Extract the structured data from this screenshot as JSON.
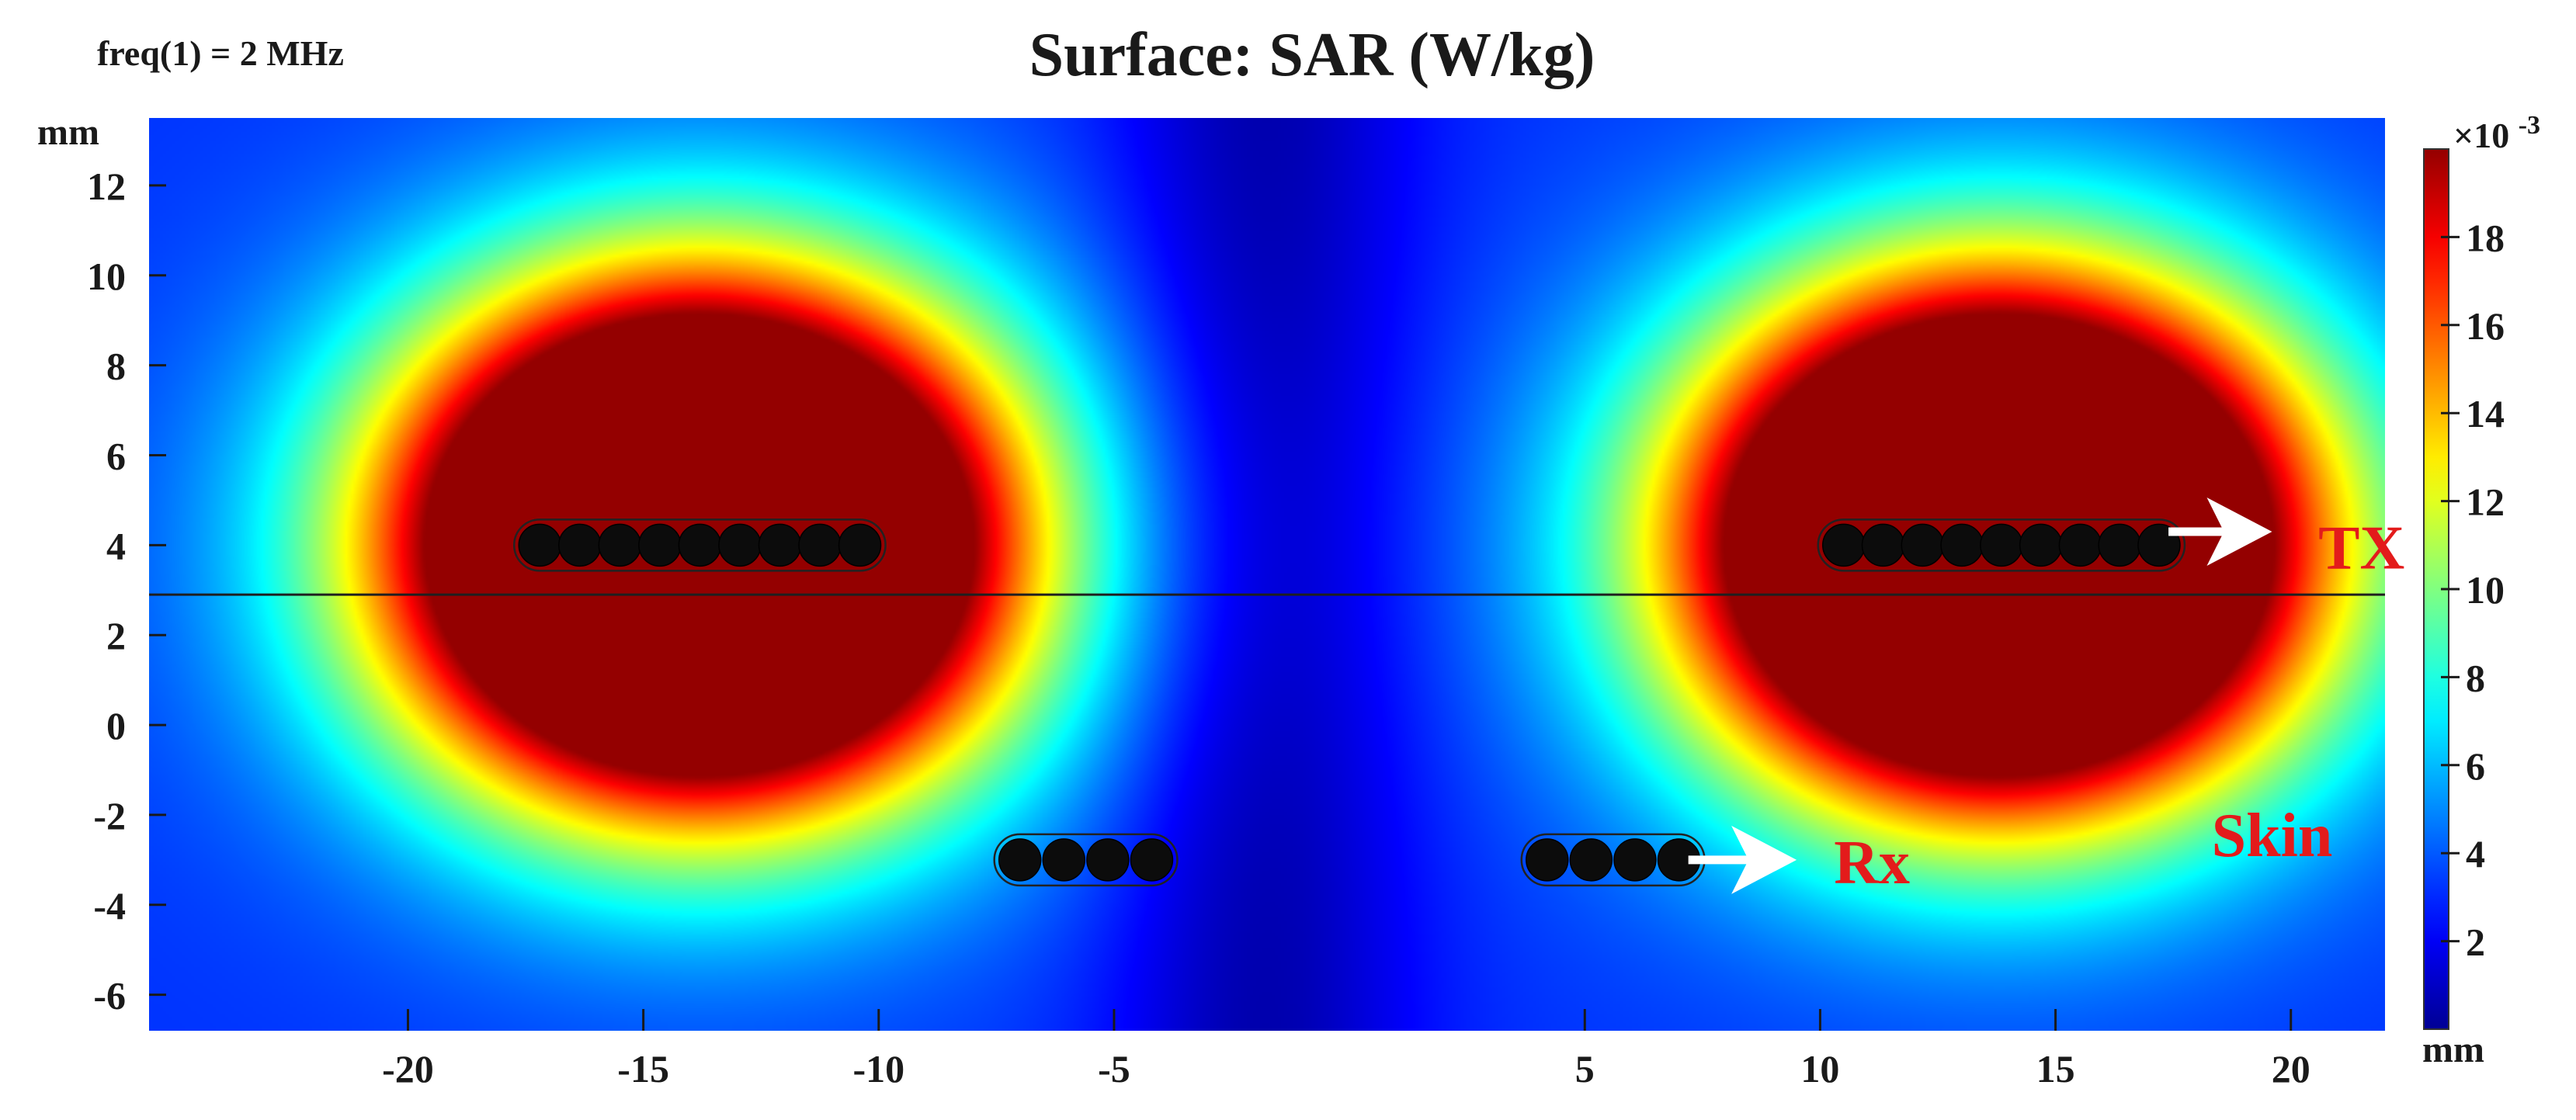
{
  "header": {
    "freq_label": "freq(1) = 2 MHz",
    "title": "Surface: SAR (W/kg)"
  },
  "chart_data": {
    "type": "heatmap",
    "title": "Surface: SAR (W/kg)",
    "parameter_label": "freq(1) = 2 MHz",
    "xlabel": "mm",
    "ylabel": "mm",
    "xlim": [
      -25.5,
      22
    ],
    "ylim": [
      -6.8,
      13.5
    ],
    "x_ticks": [
      {
        "value": -20,
        "label": "-20"
      },
      {
        "value": -15,
        "label": "-15"
      },
      {
        "value": -10,
        "label": "-10"
      },
      {
        "value": -5,
        "label": "-5"
      },
      {
        "value": 5,
        "label": "5"
      },
      {
        "value": 10,
        "label": "10"
      },
      {
        "value": 15,
        "label": "15"
      },
      {
        "value": 20,
        "label": "20"
      }
    ],
    "y_ticks": [
      {
        "value": 12,
        "label": "12"
      },
      {
        "value": 10,
        "label": "10"
      },
      {
        "value": 8,
        "label": "8"
      },
      {
        "value": 6,
        "label": "6"
      },
      {
        "value": 4,
        "label": "4"
      },
      {
        "value": 2,
        "label": "2"
      },
      {
        "value": 0,
        "label": "0"
      },
      {
        "value": -2,
        "label": "-2"
      },
      {
        "value": -4,
        "label": "-4"
      },
      {
        "value": -6,
        "label": "-6"
      }
    ],
    "colorbar": {
      "multiplier": "×10",
      "exponent": "-3",
      "min": 0,
      "max": 20,
      "colormap": "jet",
      "ticks": [
        {
          "value": 2,
          "label": "2"
        },
        {
          "value": 4,
          "label": "4"
        },
        {
          "value": 6,
          "label": "6"
        },
        {
          "value": 8,
          "label": "8"
        },
        {
          "value": 10,
          "label": "10"
        },
        {
          "value": 12,
          "label": "12"
        },
        {
          "value": 14,
          "label": "14"
        },
        {
          "value": 16,
          "label": "16"
        },
        {
          "value": 18,
          "label": "18"
        }
      ]
    },
    "hotspots": [
      {
        "center_x": -13.8,
        "center_y": 4.0,
        "radius_x": 5.0,
        "radius_y": 4.4,
        "peak": 20
      },
      {
        "center_x": 13.8,
        "center_y": 4.0,
        "radius_x": 5.0,
        "radius_y": 4.4,
        "peak": 20
      }
    ],
    "background_level": 3.2,
    "center_minimum_x": -1.8,
    "boundary_line_y": 2.9,
    "coils": [
      {
        "name": "TX-left",
        "x_start": -17.2,
        "x_end": -10.4,
        "y": 4.0,
        "turns": 9
      },
      {
        "name": "TX-right",
        "x_start": 10.5,
        "x_end": 17.2,
        "y": 4.0,
        "turns": 9
      },
      {
        "name": "Rx-left",
        "x_start": -7.0,
        "x_end": -4.2,
        "y": -3.0,
        "turns": 4
      },
      {
        "name": "Rx-right",
        "x_start": 4.2,
        "x_end": 7.0,
        "y": -3.0,
        "turns": 4
      }
    ],
    "annotations": [
      {
        "text": "TX",
        "color": "#e31b1b",
        "x": 21.5,
        "y": 3.8,
        "arrow_from": [
          17.4,
          4.3
        ],
        "arrow_to": [
          19.6,
          4.3
        ]
      },
      {
        "text": "Rx",
        "color": "#e31b1b",
        "x": 11.1,
        "y": -3.2,
        "arrow_from": [
          7.2,
          -3.0
        ],
        "arrow_to": [
          9.5,
          -3.0
        ]
      },
      {
        "text": "Skin",
        "color": "#e31b1b",
        "x": 19.6,
        "y": -2.6
      }
    ]
  }
}
